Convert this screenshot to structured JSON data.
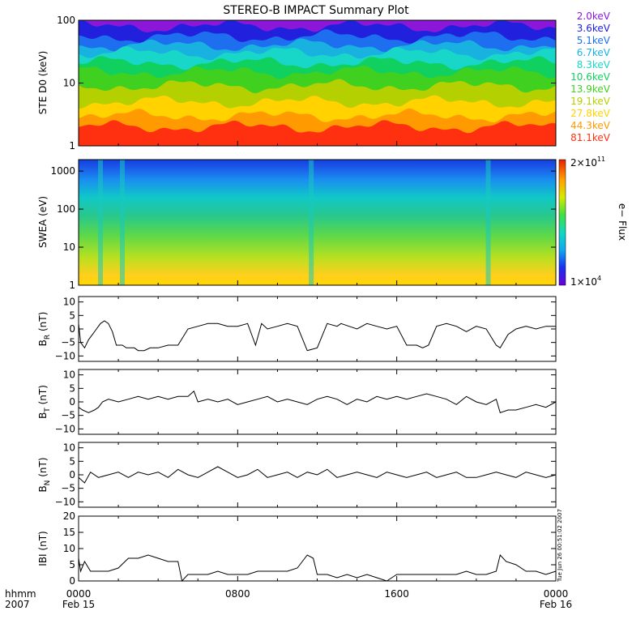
{
  "title": "STEREO-B IMPACT Summary Plot",
  "timestamp": "Tue Jun 26 00:51:02 2007",
  "colors": {
    "energy_bands": [
      "#8b18d8",
      "#2020dd",
      "#1d6ff0",
      "#19b2e0",
      "#18d6c8",
      "#10d060",
      "#40d020",
      "#b4d000",
      "#ffd200",
      "#ff9a00",
      "#ff3010"
    ]
  },
  "chart_data": [
    {
      "type": "area",
      "panel": "ste",
      "ylabel": "STE D0 (keV)",
      "yscale": "log",
      "ylim": [
        1,
        100
      ],
      "yticks": [
        "1",
        "10",
        "100"
      ],
      "yticks_values": [
        1,
        10,
        100
      ],
      "legend": [
        "2.0keV",
        "3.6keV",
        "5.1keV",
        "6.7keV",
        "8.3keV",
        "10.6keV",
        "13.9keV",
        "19.1keV",
        "27.8keV",
        "44.3keV",
        "81.1keV"
      ]
    },
    {
      "type": "heatmap",
      "panel": "swea",
      "ylabel": "SWEA (eV)",
      "yscale": "log",
      "ylim": [
        1,
        2000
      ],
      "yticks": [
        "1",
        "10",
        "100",
        "1000"
      ],
      "yticks_values": [
        1,
        10,
        100,
        1000
      ],
      "colorbar_label": "e− Flux",
      "colorbar_max": "2×10",
      "colorbar_max_exp": "11",
      "colorbar_min": "1×10",
      "colorbar_min_exp": "4"
    },
    {
      "type": "line",
      "panel": "br",
      "ylabel_main": "B",
      "ylabel_sub": "R",
      "ylabel_unit": "(nT)",
      "ylim": [
        -12,
        12
      ],
      "yticks": [
        "−10",
        "−5",
        "0",
        "5",
        "10"
      ],
      "yticks_values": [
        -10,
        -5,
        0,
        5,
        10
      ],
      "x": [
        0,
        0.1,
        0.3,
        0.5,
        0.7,
        0.9,
        1.0,
        1.1,
        1.3,
        1.5,
        1.7,
        1.9,
        2.2,
        2.4,
        2.6,
        2.8,
        3.0,
        3.3,
        3.6,
        4.0,
        4.5,
        5.0,
        5.5,
        6.0,
        6.5,
        7.0,
        7.5,
        8.0,
        8.5,
        8.9,
        9.2,
        9.5,
        10.0,
        10.5,
        11.0,
        11.5,
        12.0,
        12.5,
        13.0,
        13.2,
        13.6,
        14.0,
        14.5,
        15.0,
        15.5,
        16.0,
        16.5,
        17.0,
        17.3,
        17.6,
        18.0,
        18.5,
        19.0,
        19.5,
        20.0,
        20.5,
        21.0,
        21.2,
        21.6,
        22.0,
        22.5,
        23.0,
        23.5,
        24.0
      ],
      "y": [
        2,
        -5,
        -7,
        -4,
        -2,
        0,
        1,
        2,
        3,
        2,
        -1,
        -6,
        -6,
        -7,
        -7,
        -7,
        -8,
        -8,
        -7,
        -7,
        -6,
        -6,
        0,
        1,
        2,
        2,
        1,
        1,
        2,
        -6,
        2,
        0,
        1,
        2,
        1,
        -8,
        -7,
        2,
        1,
        2,
        1,
        0,
        2,
        1,
        0,
        1,
        -6,
        -6,
        -7,
        -6,
        1,
        2,
        1,
        -1,
        1,
        0,
        -6,
        -7,
        -2,
        0,
        1,
        0,
        1,
        1
      ]
    },
    {
      "type": "line",
      "panel": "bt",
      "ylabel_main": "B",
      "ylabel_sub": "T",
      "ylabel_unit": "(nT)",
      "ylim": [
        -12,
        12
      ],
      "yticks": [
        "−10",
        "−5",
        "0",
        "5",
        "10"
      ],
      "yticks_values": [
        -10,
        -5,
        0,
        5,
        10
      ],
      "x": [
        0,
        0.2,
        0.5,
        0.8,
        1.0,
        1.2,
        1.5,
        2.0,
        2.5,
        3.0,
        3.5,
        4.0,
        4.5,
        5.0,
        5.5,
        5.8,
        6.0,
        6.5,
        7.0,
        7.5,
        8.0,
        8.5,
        9.0,
        9.5,
        10.0,
        10.5,
        11.0,
        11.5,
        12.0,
        12.5,
        13.0,
        13.5,
        14.0,
        14.5,
        15.0,
        15.5,
        16.0,
        16.5,
        17.0,
        17.5,
        18.0,
        18.5,
        19.0,
        19.5,
        20.0,
        20.5,
        21.0,
        21.2,
        21.6,
        22.0,
        22.5,
        23.0,
        23.5,
        24.0
      ],
      "y": [
        -2,
        -3,
        -4,
        -3,
        -2,
        0,
        1,
        0,
        1,
        2,
        1,
        2,
        1,
        2,
        2,
        4,
        0,
        1,
        0,
        1,
        -1,
        0,
        1,
        2,
        0,
        1,
        0,
        -1,
        1,
        2,
        1,
        -1,
        1,
        0,
        2,
        1,
        2,
        1,
        2,
        3,
        2,
        1,
        -1,
        2,
        0,
        -1,
        1,
        -4,
        -3,
        -3,
        -2,
        -1,
        -2,
        0
      ]
    },
    {
      "type": "line",
      "panel": "bn",
      "ylabel_main": "B",
      "ylabel_sub": "N",
      "ylabel_unit": "(nT)",
      "ylim": [
        -12,
        12
      ],
      "yticks": [
        "−10",
        "−5",
        "0",
        "5",
        "10"
      ],
      "yticks_values": [
        -10,
        -5,
        0,
        5,
        10
      ],
      "x": [
        0,
        0.3,
        0.6,
        1.0,
        1.5,
        2.0,
        2.5,
        3.0,
        3.5,
        4.0,
        4.5,
        5.0,
        5.5,
        6.0,
        6.5,
        7.0,
        7.5,
        8.0,
        8.5,
        9.0,
        9.5,
        10.0,
        10.5,
        11.0,
        11.5,
        12.0,
        12.5,
        13.0,
        13.5,
        14.0,
        14.5,
        15.0,
        15.5,
        16.0,
        16.5,
        17.0,
        17.5,
        18.0,
        18.5,
        19.0,
        19.5,
        20.0,
        20.5,
        21.0,
        21.5,
        22.0,
        22.5,
        23.0,
        23.5,
        24.0
      ],
      "y": [
        -1,
        -3,
        1,
        -1,
        0,
        1,
        -1,
        1,
        0,
        1,
        -1,
        2,
        0,
        -1,
        1,
        3,
        1,
        -1,
        0,
        2,
        -1,
        0,
        1,
        -1,
        1,
        0,
        2,
        -1,
        0,
        1,
        0,
        -1,
        1,
        0,
        -1,
        0,
        1,
        -1,
        0,
        1,
        -1,
        -1,
        0,
        1,
        0,
        -1,
        1,
        0,
        -1,
        0
      ]
    },
    {
      "type": "line",
      "panel": "bmag",
      "ylabel": "IBI (nT)",
      "ylim": [
        0,
        20
      ],
      "yticks": [
        "0",
        "5",
        "10",
        "15",
        "20"
      ],
      "yticks_values": [
        0,
        5,
        10,
        15,
        20
      ],
      "x": [
        0,
        0.1,
        0.3,
        0.6,
        1.0,
        1.5,
        2.0,
        2.5,
        3.0,
        3.5,
        4.0,
        4.5,
        5.0,
        5.2,
        5.5,
        6.0,
        6.5,
        7.0,
        7.5,
        8.0,
        8.5,
        9.0,
        9.5,
        10.0,
        10.5,
        11.0,
        11.5,
        11.8,
        12.0,
        12.5,
        13.0,
        13.5,
        14.0,
        14.5,
        15.0,
        15.5,
        16.0,
        16.5,
        17.0,
        17.5,
        18.0,
        18.5,
        19.0,
        19.5,
        20.0,
        20.5,
        21.0,
        21.2,
        21.5,
        22.0,
        22.5,
        23.0,
        23.5,
        24.0
      ],
      "y": [
        7,
        3,
        6,
        3,
        3,
        3,
        4,
        7,
        7,
        8,
        7,
        6,
        6,
        0,
        2,
        2,
        2,
        3,
        2,
        2,
        2,
        3,
        3,
        3,
        3,
        4,
        8,
        7,
        2,
        2,
        1,
        2,
        1,
        2,
        1,
        0,
        2,
        2,
        2,
        2,
        2,
        2,
        2,
        3,
        2,
        2,
        3,
        8,
        6,
        5,
        3,
        3,
        2,
        3
      ]
    }
  ],
  "xaxis": {
    "range": [
      0,
      24
    ],
    "hhmm_label": "hhmm",
    "year_label": "2007",
    "ticks": [
      {
        "value": 0,
        "time": "0000",
        "date": "Feb 15"
      },
      {
        "value": 8,
        "time": "0800",
        "date": ""
      },
      {
        "value": 16,
        "time": "1600",
        "date": ""
      },
      {
        "value": 24,
        "time": "0000",
        "date": "Feb 16"
      }
    ]
  }
}
